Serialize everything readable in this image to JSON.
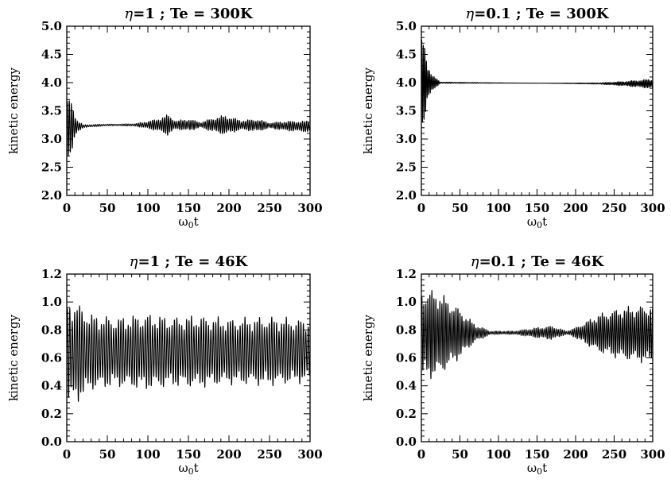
{
  "chart_data": [
    {
      "type": "line",
      "title_prefix": "η",
      "title_rest": "=1 ; Te = 300K",
      "xlabel_symbol": "ω",
      "xlabel_sub": "0",
      "xlabel_tail": "t",
      "ylabel": "kinetic energy",
      "xlim": [
        0,
        300
      ],
      "ylim": [
        2.0,
        5.0
      ],
      "xticks": [
        0,
        50,
        100,
        150,
        200,
        250,
        300
      ],
      "yticks": [
        2.0,
        2.5,
        3.0,
        3.5,
        4.0,
        4.5,
        5.0
      ],
      "series": [
        {
          "mean": [
            [
              0,
              3.2
            ],
            [
              10,
              3.22
            ],
            [
              50,
              3.25
            ],
            [
              100,
              3.25
            ],
            [
              150,
              3.25
            ],
            [
              200,
              3.25
            ],
            [
              250,
              3.24
            ],
            [
              300,
              3.22
            ]
          ],
          "amplitude": [
            [
              0,
              0.42
            ],
            [
              4,
              0.42
            ],
            [
              12,
              0.12
            ],
            [
              20,
              0.02
            ],
            [
              60,
              0.01
            ],
            [
              85,
              0.02
            ],
            [
              110,
              0.08
            ],
            [
              125,
              0.15
            ],
            [
              135,
              0.06
            ],
            [
              150,
              0.09
            ],
            [
              165,
              0.04
            ],
            [
              180,
              0.1
            ],
            [
              195,
              0.14
            ],
            [
              215,
              0.07
            ],
            [
              235,
              0.09
            ],
            [
              250,
              0.04
            ],
            [
              270,
              0.07
            ],
            [
              300,
              0.08
            ]
          ],
          "period": 2.5
        }
      ]
    },
    {
      "type": "line",
      "title_prefix": "η",
      "title_rest": "=0.1 ; Te = 300K",
      "xlabel_symbol": "ω",
      "xlabel_sub": "0",
      "xlabel_tail": "t",
      "ylabel": "kinetic energy",
      "xlim": [
        0,
        300
      ],
      "ylim": [
        2.0,
        5.0
      ],
      "xticks": [
        0,
        50,
        100,
        150,
        200,
        250,
        300
      ],
      "yticks": [
        2.0,
        2.5,
        3.0,
        3.5,
        4.0,
        4.5,
        5.0
      ],
      "series": [
        {
          "mean": [
            [
              0,
              4.0
            ],
            [
              300,
              3.98
            ]
          ],
          "amplitude": [
            [
              0,
              0.62
            ],
            [
              3,
              0.62
            ],
            [
              8,
              0.3
            ],
            [
              15,
              0.1
            ],
            [
              25,
              0.01
            ],
            [
              150,
              0.0
            ],
            [
              230,
              0.01
            ],
            [
              260,
              0.03
            ],
            [
              300,
              0.07
            ]
          ],
          "period": 2.0
        }
      ]
    },
    {
      "type": "line",
      "title_prefix": "η",
      "title_rest": "=1 ; Te = 46K",
      "xlabel_symbol": "ω",
      "xlabel_sub": "0",
      "xlabel_tail": "t",
      "ylabel": "kinetic energy",
      "xlim": [
        0,
        300
      ],
      "ylim": [
        0.0,
        1.2
      ],
      "xticks": [
        0,
        50,
        100,
        150,
        200,
        250,
        300
      ],
      "yticks": [
        0.0,
        0.2,
        0.4,
        0.6,
        0.8,
        1.0,
        1.2
      ],
      "series": [
        {
          "mean": [
            [
              0,
              0.64
            ],
            [
              300,
              0.65
            ]
          ],
          "amplitude": [
            [
              0,
              0.3
            ],
            [
              10,
              0.3
            ],
            [
              30,
              0.22
            ],
            [
              60,
              0.2
            ],
            [
              100,
              0.22
            ],
            [
              130,
              0.2
            ],
            [
              160,
              0.21
            ],
            [
              200,
              0.19
            ],
            [
              250,
              0.2
            ],
            [
              300,
              0.18
            ]
          ],
          "period": 3.0
        }
      ]
    },
    {
      "type": "line",
      "title_prefix": "η",
      "title_rest": "=0.1 ; Te = 46K",
      "xlabel_symbol": "ω",
      "xlabel_sub": "0",
      "xlabel_tail": "t",
      "ylabel": "kinetic energy",
      "xlim": [
        0,
        300
      ],
      "ylim": [
        0.0,
        1.2
      ],
      "xticks": [
        0,
        50,
        100,
        150,
        200,
        250,
        300
      ],
      "yticks": [
        0.0,
        0.2,
        0.4,
        0.6,
        0.8,
        1.0,
        1.2
      ],
      "series": [
        {
          "mean": [
            [
              0,
              0.77
            ],
            [
              100,
              0.78
            ],
            [
              200,
              0.78
            ],
            [
              300,
              0.77
            ]
          ],
          "amplitude": [
            [
              0,
              0.26
            ],
            [
              20,
              0.25
            ],
            [
              45,
              0.16
            ],
            [
              70,
              0.05
            ],
            [
              90,
              0.01
            ],
            [
              120,
              0.01
            ],
            [
              150,
              0.03
            ],
            [
              170,
              0.04
            ],
            [
              188,
              0.01
            ],
            [
              200,
              0.03
            ],
            [
              230,
              0.11
            ],
            [
              260,
              0.15
            ],
            [
              300,
              0.17
            ]
          ],
          "period": 2.6
        }
      ]
    }
  ]
}
